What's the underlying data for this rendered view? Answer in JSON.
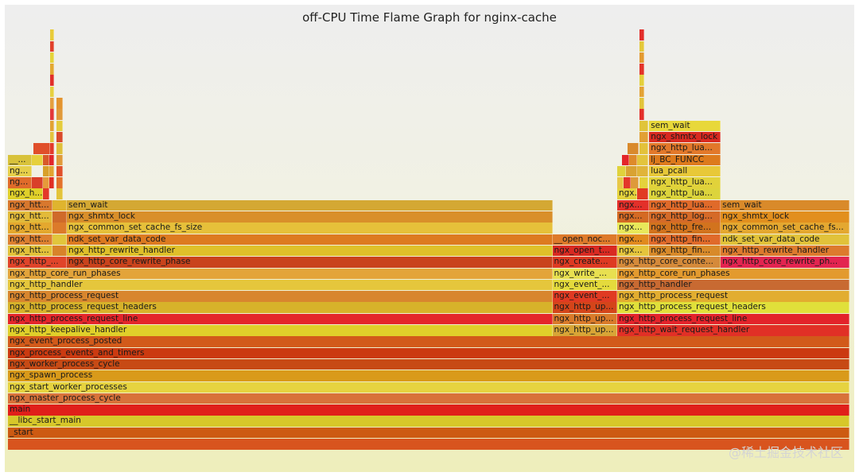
{
  "chart_data": {
    "type": "flame",
    "title": "off-CPU Time Flame Graph for nginx-cache",
    "x_units": "width share (0-1000) of sampled off-CPU time",
    "depth_units": "stack depth, 0 = bottom frame",
    "frames": [
      {
        "label": "",
        "x": 0,
        "w": 1000,
        "d": 0,
        "c": "#d8541e"
      },
      {
        "label": "_start",
        "x": 0,
        "w": 1000,
        "d": 1,
        "c": "#cd5a12"
      },
      {
        "label": "__libc_start_main",
        "x": 0,
        "w": 1000,
        "d": 2,
        "c": "#d7c72a"
      },
      {
        "label": "main",
        "x": 0,
        "w": 1000,
        "d": 3,
        "c": "#e01f1a"
      },
      {
        "label": "ngx_master_process_cycle",
        "x": 0,
        "w": 1000,
        "d": 4,
        "c": "#d8723a"
      },
      {
        "label": "ngx_start_worker_processes",
        "x": 0,
        "w": 1000,
        "d": 5,
        "c": "#e6d340"
      },
      {
        "label": "ngx_spawn_process",
        "x": 0,
        "w": 1000,
        "d": 6,
        "c": "#d99a1a"
      },
      {
        "label": "ngx_worker_process_cycle",
        "x": 0,
        "w": 1000,
        "d": 7,
        "c": "#c74a15"
      },
      {
        "label": "ngx_process_events_and_timers",
        "x": 0,
        "w": 1000,
        "d": 8,
        "c": "#cb3a10"
      },
      {
        "label": "ngx_event_process_posted",
        "x": 0,
        "w": 1000,
        "d": 9,
        "c": "#d25a1a"
      },
      {
        "label": "ngx_http_keepalive_handler",
        "x": 0,
        "w": 647,
        "d": 10,
        "c": "#e0d02a"
      },
      {
        "label": "ngx_http_up...",
        "x": 647,
        "w": 77,
        "d": 10,
        "c": "#d8a536"
      },
      {
        "label": "ngx_http_wait_request_handler",
        "x": 724,
        "w": 276,
        "d": 10,
        "c": "#e13026"
      },
      {
        "label": "ngx_http_process_request_line",
        "x": 0,
        "w": 647,
        "d": 11,
        "c": "#e4262a"
      },
      {
        "label": "ngx_http_up...",
        "x": 647,
        "w": 77,
        "d": 11,
        "c": "#d97a2a"
      },
      {
        "label": "ngx_http_process_request_line",
        "x": 724,
        "w": 276,
        "d": 11,
        "c": "#e3232a"
      },
      {
        "label": "ngx_http_process_request_headers",
        "x": 0,
        "w": 647,
        "d": 12,
        "c": "#d7b22a"
      },
      {
        "label": "ngx_http_up...",
        "x": 647,
        "w": 77,
        "d": 12,
        "c": "#d4451a"
      },
      {
        "label": "ngx_http_process_request_headers",
        "x": 724,
        "w": 276,
        "d": 12,
        "c": "#e0e03a"
      },
      {
        "label": "ngx_http_process_request",
        "x": 0,
        "w": 647,
        "d": 13,
        "c": "#d8862e"
      },
      {
        "label": "ngx_event_...",
        "x": 647,
        "w": 77,
        "d": 13,
        "c": "#e03a22"
      },
      {
        "label": "ngx_http_process_request",
        "x": 724,
        "w": 276,
        "d": 13,
        "c": "#e2ad30"
      },
      {
        "label": "ngx_http_handler",
        "x": 0,
        "w": 647,
        "d": 14,
        "c": "#e5c63c"
      },
      {
        "label": "ngx_event_...",
        "x": 647,
        "w": 77,
        "d": 14,
        "c": "#e4da3c"
      },
      {
        "label": "ngx_http_handler",
        "x": 724,
        "w": 276,
        "d": 14,
        "c": "#c86a32"
      },
      {
        "label": "ngx_http_core_run_phases",
        "x": 0,
        "w": 647,
        "d": 15,
        "c": "#e3a43a"
      },
      {
        "label": "ngx_write_...",
        "x": 647,
        "w": 77,
        "d": 15,
        "c": "#e8e050"
      },
      {
        "label": "ngx_http_core_run_phases",
        "x": 724,
        "w": 276,
        "d": 15,
        "c": "#e39a2e"
      },
      {
        "label": "ngx_http_...",
        "x": 0,
        "w": 70,
        "d": 16,
        "c": "#e0442a"
      },
      {
        "label": "ngx_http_core_rewrite_phase",
        "x": 70,
        "w": 577,
        "d": 16,
        "c": "#c9431c"
      },
      {
        "label": "ngx_create...",
        "x": 647,
        "w": 77,
        "d": 16,
        "c": "#de3a22"
      },
      {
        "label": "ngx_http_core_conte...",
        "x": 724,
        "w": 123,
        "d": 16,
        "c": "#d58a3a"
      },
      {
        "label": "ngx_http_core_rewrite_ph...",
        "x": 847,
        "w": 153,
        "d": 16,
        "c": "#e32550"
      },
      {
        "label": "ngx_htt...",
        "x": 0,
        "w": 53,
        "d": 17,
        "c": "#e2c23a"
      },
      {
        "label": "",
        "x": 53,
        "w": 17,
        "d": 17,
        "c": "#d8832a"
      },
      {
        "label": "ngx_http_rewrite_handler",
        "x": 70,
        "w": 577,
        "d": 17,
        "c": "#dfc02a"
      },
      {
        "label": "ngx_open_t...",
        "x": 647,
        "w": 77,
        "d": 17,
        "c": "#d92a22"
      },
      {
        "label": "ngx...",
        "x": 724,
        "w": 38,
        "d": 17,
        "c": "#e5c53c"
      },
      {
        "label": "ngx_http_fin...",
        "x": 762,
        "w": 85,
        "d": 17,
        "c": "#d88a2a"
      },
      {
        "label": "ngx_http_rewrite_handler",
        "x": 847,
        "w": 153,
        "d": 17,
        "c": "#dd7a2e"
      },
      {
        "label": "ngx_htt...",
        "x": 0,
        "w": 53,
        "d": 18,
        "c": "#dd8030"
      },
      {
        "label": "",
        "x": 53,
        "w": 17,
        "d": 18,
        "c": "#e1c63c"
      },
      {
        "label": "ndk_set_var_data_code",
        "x": 70,
        "w": 577,
        "d": 18,
        "c": "#dd7a20"
      },
      {
        "label": "__open_noc...",
        "x": 647,
        "w": 77,
        "d": 18,
        "c": "#de7a2a"
      },
      {
        "label": "ngx...",
        "x": 724,
        "w": 38,
        "d": 18,
        "c": "#e18a1e"
      },
      {
        "label": "ngx_http_fin...",
        "x": 762,
        "w": 85,
        "d": 18,
        "c": "#e06a2a"
      },
      {
        "label": "ndk_set_var_data_code",
        "x": 847,
        "w": 153,
        "d": 18,
        "c": "#e1c23a"
      },
      {
        "label": "ngx_htt...",
        "x": 0,
        "w": 53,
        "d": 19,
        "c": "#e4a82e"
      },
      {
        "label": "",
        "x": 53,
        "w": 17,
        "d": 19,
        "c": "#dc7a2a"
      },
      {
        "label": "ngx_common_set_cache_fs_size",
        "x": 70,
        "w": 577,
        "d": 19,
        "c": "#e6c03a"
      },
      {
        "label": "ngx...",
        "x": 724,
        "w": 38,
        "d": 19,
        "c": "#e8e85a"
      },
      {
        "label": "ngx_http_fre...",
        "x": 762,
        "w": 85,
        "d": 19,
        "c": "#d2731e"
      },
      {
        "label": "ngx_common_set_cache_fs...",
        "x": 847,
        "w": 153,
        "d": 19,
        "c": "#e4a830"
      },
      {
        "label": "ngx_htt...",
        "x": 0,
        "w": 53,
        "d": 20,
        "c": "#e2ba3a"
      },
      {
        "label": "",
        "x": 53,
        "w": 17,
        "d": 20,
        "c": "#cf6a2a"
      },
      {
        "label": "ngx_shmtx_lock",
        "x": 70,
        "w": 577,
        "d": 20,
        "c": "#d98f2a"
      },
      {
        "label": "ngx...",
        "x": 724,
        "w": 38,
        "d": 20,
        "c": "#d46a24"
      },
      {
        "label": "ngx_http_log...",
        "x": 762,
        "w": 85,
        "d": 20,
        "c": "#d56a28"
      },
      {
        "label": "ngx_shmtx_lock",
        "x": 847,
        "w": 153,
        "d": 20,
        "c": "#e28f1e"
      },
      {
        "label": "ngx_htt...",
        "x": 0,
        "w": 53,
        "d": 21,
        "c": "#d8782e"
      },
      {
        "label": "",
        "x": 53,
        "w": 17,
        "d": 21,
        "c": "#dfb42e"
      },
      {
        "label": "sem_wait",
        "x": 70,
        "w": 577,
        "d": 21,
        "c": "#d4a833"
      },
      {
        "label": "ngx...",
        "x": 724,
        "w": 38,
        "d": 21,
        "c": "#e3302a"
      },
      {
        "label": "ngx_http_lua...",
        "x": 762,
        "w": 85,
        "d": 21,
        "c": "#e06a2a"
      },
      {
        "label": "sem_wait",
        "x": 847,
        "w": 153,
        "d": 21,
        "c": "#d98a2a"
      },
      {
        "label": "ngx_h...",
        "x": 0,
        "w": 42,
        "d": 22,
        "c": "#e0d02a"
      },
      {
        "label": "",
        "x": 42,
        "w": 7,
        "d": 22,
        "c": "#e3382a"
      },
      {
        "label": "",
        "x": 58,
        "w": 7,
        "d": 22,
        "c": "#e3c43a"
      },
      {
        "label": "ngx...",
        "x": 724,
        "w": 24,
        "d": 22,
        "c": "#e4d23c"
      },
      {
        "label": "",
        "x": 748,
        "w": 13,
        "d": 22,
        "c": "#e13a24"
      },
      {
        "label": "ngx_http_lua...",
        "x": 762,
        "w": 85,
        "d": 22,
        "c": "#dcd43c"
      },
      {
        "label": "ng...",
        "x": 0,
        "w": 28,
        "d": 23,
        "c": "#e06b2a"
      },
      {
        "label": "",
        "x": 28,
        "w": 14,
        "d": 23,
        "c": "#d9402a"
      },
      {
        "label": "",
        "x": 42,
        "w": 7,
        "d": 23,
        "c": "#e69a3a"
      },
      {
        "label": "",
        "x": 49,
        "w": 6,
        "d": 23,
        "c": "#e02f24"
      },
      {
        "label": "",
        "x": 58,
        "w": 7,
        "d": 23,
        "c": "#e3722a"
      },
      {
        "label": "",
        "x": 724,
        "w": 8,
        "d": 23,
        "c": "#e8c848"
      },
      {
        "label": "",
        "x": 732,
        "w": 8,
        "d": 23,
        "c": "#e3382a"
      },
      {
        "label": "",
        "x": 740,
        "w": 10,
        "d": 23,
        "c": "#de9a3a"
      },
      {
        "label": "",
        "x": 750,
        "w": 11,
        "d": 23,
        "c": "#e4d23c"
      },
      {
        "label": "ngx_http_lua...",
        "x": 762,
        "w": 85,
        "d": 23,
        "c": "#e1d23a"
      },
      {
        "label": "ng...",
        "x": 0,
        "w": 28,
        "d": 24,
        "c": "#e6cf4a"
      },
      {
        "label": "",
        "x": 42,
        "w": 7,
        "d": 24,
        "c": "#d8a02a"
      },
      {
        "label": "",
        "x": 49,
        "w": 6,
        "d": 24,
        "c": "#e2a430"
      },
      {
        "label": "",
        "x": 58,
        "w": 7,
        "d": 24,
        "c": "#e0502a"
      },
      {
        "label": "",
        "x": 724,
        "w": 10,
        "d": 24,
        "c": "#e0d23c"
      },
      {
        "label": "",
        "x": 734,
        "w": 14,
        "d": 24,
        "c": "#d9a232"
      },
      {
        "label": "",
        "x": 748,
        "w": 13,
        "d": 24,
        "c": "#e0b43a"
      },
      {
        "label": "lua_pcall",
        "x": 762,
        "w": 85,
        "d": 24,
        "c": "#e8c838"
      },
      {
        "label": "__...",
        "x": 0,
        "w": 28,
        "d": 25,
        "c": "#d8c23a"
      },
      {
        "label": "",
        "x": 28,
        "w": 14,
        "d": 25,
        "c": "#e6d03c"
      },
      {
        "label": "",
        "x": 42,
        "w": 7,
        "d": 25,
        "c": "#d85a2a"
      },
      {
        "label": "",
        "x": 49,
        "w": 6,
        "d": 25,
        "c": "#e2252a"
      },
      {
        "label": "",
        "x": 58,
        "w": 7,
        "d": 25,
        "c": "#e09a3a"
      },
      {
        "label": "",
        "x": 730,
        "w": 8,
        "d": 25,
        "c": "#e3262a"
      },
      {
        "label": "",
        "x": 738,
        "w": 10,
        "d": 25,
        "c": "#de8a2a"
      },
      {
        "label": "",
        "x": 748,
        "w": 13,
        "d": 25,
        "c": "#e3c43c"
      },
      {
        "label": "lj_BC_FUNCC",
        "x": 762,
        "w": 85,
        "d": 25,
        "c": "#dd7a1c"
      },
      {
        "label": "",
        "x": 30,
        "w": 20,
        "d": 26,
        "c": "#e04f2a"
      },
      {
        "label": "",
        "x": 50,
        "w": 5,
        "d": 26,
        "c": "#e33a2a"
      },
      {
        "label": "",
        "x": 58,
        "w": 7,
        "d": 26,
        "c": "#dfc03a"
      },
      {
        "label": "",
        "x": 736,
        "w": 14,
        "d": 26,
        "c": "#d98a2c"
      },
      {
        "label": "",
        "x": 750,
        "w": 11,
        "d": 26,
        "c": "#e3c23a"
      },
      {
        "label": "ngx_http_lua...",
        "x": 762,
        "w": 85,
        "d": 26,
        "c": "#e2782a"
      },
      {
        "label": "",
        "x": 50,
        "w": 5,
        "d": 27,
        "c": "#e3c43c"
      },
      {
        "label": "",
        "x": 58,
        "w": 7,
        "d": 27,
        "c": "#d94a2a"
      },
      {
        "label": "",
        "x": 750,
        "w": 11,
        "d": 27,
        "c": "#e2a034"
      },
      {
        "label": "ngx_shmtx_lock",
        "x": 762,
        "w": 85,
        "d": 27,
        "c": "#d92a20"
      },
      {
        "label": "",
        "x": 50,
        "w": 5,
        "d": 28,
        "c": "#e2a232"
      },
      {
        "label": "",
        "x": 58,
        "w": 7,
        "d": 28,
        "c": "#e4cc3c"
      },
      {
        "label": "",
        "x": 750,
        "w": 11,
        "d": 28,
        "c": "#e0c43a"
      },
      {
        "label": "sem_wait",
        "x": 762,
        "w": 85,
        "d": 28,
        "c": "#e8d83a"
      },
      {
        "label": "",
        "x": 50,
        "w": 5,
        "d": 29,
        "c": "#e3383a"
      },
      {
        "label": "",
        "x": 58,
        "w": 7,
        "d": 29,
        "c": "#e09a3a"
      },
      {
        "label": "",
        "x": 750,
        "w": 6,
        "d": 29,
        "c": "#e3302a"
      },
      {
        "label": "",
        "x": 50,
        "w": 5,
        "d": 30,
        "c": "#e5a040"
      },
      {
        "label": "",
        "x": 58,
        "w": 7,
        "d": 30,
        "c": "#e3942e"
      },
      {
        "label": "",
        "x": 750,
        "w": 6,
        "d": 30,
        "c": "#e2c43a"
      },
      {
        "label": "",
        "x": 50,
        "w": 5,
        "d": 31,
        "c": "#e6d040"
      },
      {
        "label": "",
        "x": 750,
        "w": 6,
        "d": 31,
        "c": "#e3a234"
      },
      {
        "label": "",
        "x": 50,
        "w": 5,
        "d": 32,
        "c": "#e02f2a"
      },
      {
        "label": "",
        "x": 750,
        "w": 6,
        "d": 32,
        "c": "#e4d03c"
      },
      {
        "label": "",
        "x": 50,
        "w": 5,
        "d": 33,
        "c": "#e3a832"
      },
      {
        "label": "",
        "x": 750,
        "w": 6,
        "d": 33,
        "c": "#e3342a"
      },
      {
        "label": "",
        "x": 50,
        "w": 5,
        "d": 34,
        "c": "#e4d33a"
      },
      {
        "label": "",
        "x": 750,
        "w": 6,
        "d": 34,
        "c": "#e39a30"
      },
      {
        "label": "",
        "x": 50,
        "w": 5,
        "d": 35,
        "c": "#e0402a"
      },
      {
        "label": "",
        "x": 750,
        "w": 6,
        "d": 35,
        "c": "#e4c83a"
      },
      {
        "label": "",
        "x": 50,
        "w": 5,
        "d": 36,
        "c": "#e8cb3a"
      },
      {
        "label": "",
        "x": 750,
        "w": 6,
        "d": 36,
        "c": "#e22e2a"
      }
    ]
  },
  "watermark": "@稀土掘金技术社区"
}
